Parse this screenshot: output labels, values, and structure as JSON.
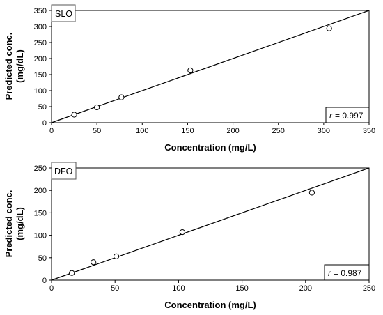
{
  "chart_data": [
    {
      "type": "scatter",
      "tag": "SLO",
      "xlabel": "Concentration (mg/L)",
      "ylabel_line1": "Predicted conc.",
      "ylabel_line2": "(mg/dL)",
      "xlim": [
        0,
        350
      ],
      "ylim": [
        0,
        350
      ],
      "xticks": [
        0,
        50,
        100,
        150,
        200,
        250,
        300,
        350
      ],
      "yticks": [
        0,
        50,
        100,
        150,
        200,
        250,
        300,
        350
      ],
      "points": [
        {
          "x": 25,
          "y": 25
        },
        {
          "x": 50,
          "y": 48
        },
        {
          "x": 77,
          "y": 79
        },
        {
          "x": 153,
          "y": 163
        },
        {
          "x": 306,
          "y": 294
        }
      ],
      "line": [
        [
          0,
          0
        ],
        [
          350,
          350
        ]
      ],
      "r_symbol": "r",
      "r_value": "= 0.997",
      "grid": false
    },
    {
      "type": "scatter",
      "tag": "DFO",
      "xlabel": "Concentration (mg/L)",
      "ylabel_line1": "Predicted conc.",
      "ylabel_line2": "(mg/dL)",
      "xlim": [
        0,
        250
      ],
      "ylim": [
        0,
        250
      ],
      "xticks": [
        0,
        50,
        100,
        150,
        200,
        250
      ],
      "yticks": [
        0,
        50,
        100,
        150,
        200,
        250
      ],
      "points": [
        {
          "x": 16,
          "y": 16
        },
        {
          "x": 33,
          "y": 40
        },
        {
          "x": 51,
          "y": 53
        },
        {
          "x": 103,
          "y": 107
        },
        {
          "x": 205,
          "y": 195
        }
      ],
      "line": [
        [
          0,
          0
        ],
        [
          250,
          250
        ]
      ],
      "r_symbol": "r",
      "r_value": "= 0.987",
      "grid": false
    }
  ]
}
